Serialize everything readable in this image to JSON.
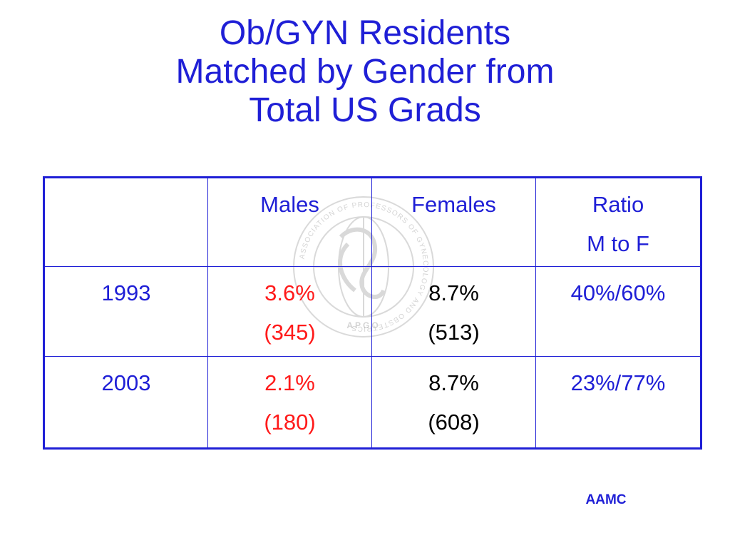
{
  "title": {
    "line1": "Ob/GYN Residents",
    "line2": "Matched by Gender from",
    "line3": "Total US Grads"
  },
  "table": {
    "header": {
      "blank": "",
      "males": "Males",
      "females": "Females",
      "ratio_line1": "Ratio",
      "ratio_line2": "M to F"
    },
    "rows": [
      {
        "year": "1993",
        "males_pct": "3.6%",
        "males_count": "(345)",
        "females_pct": "8.7%",
        "females_count": "(513)",
        "ratio": "40%/60%"
      },
      {
        "year": "2003",
        "males_pct": "2.1%",
        "males_count": "(180)",
        "females_pct": "8.7%",
        "females_count": "(608)",
        "ratio": "23%/77%"
      }
    ]
  },
  "watermark": {
    "ring_text": "ASSOCIATION OF PROFESSORS OF GYNECOLOGY AND OBSTETRICS",
    "abbrev": "APGO"
  },
  "source": "AAMC",
  "colors": {
    "title": "#1f1fd6",
    "table_text": "#1f1fd6",
    "males_values": "#ff1a1a",
    "females_values": "#000000",
    "border": "#1f1fd6"
  }
}
